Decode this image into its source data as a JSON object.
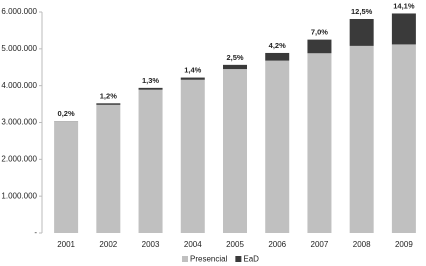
{
  "chart_data": {
    "type": "stacked-bar",
    "categories": [
      "2001",
      "2002",
      "2003",
      "2004",
      "2005",
      "2006",
      "2007",
      "2008",
      "2009"
    ],
    "series": [
      {
        "name": "Presencial",
        "color": "#c0c0c0",
        "values": [
          3030000,
          3480000,
          3890000,
          4160000,
          4450000,
          4680000,
          4880000,
          5080000,
          5120000
        ]
      },
      {
        "name": "EaD",
        "color": "#3a3a3a",
        "values": [
          5000,
          41000,
          50000,
          60000,
          115000,
          208000,
          370000,
          730000,
          840000
        ]
      }
    ],
    "annotations": [
      "0,2%",
      "1,2%",
      "1,3%",
      "1,4%",
      "2,5%",
      "4,2%",
      "7,0%",
      "12,5%",
      "14,1%"
    ],
    "ylim": [
      0,
      6000000
    ],
    "yticks": [
      {
        "value": 0,
        "label": "-"
      },
      {
        "value": 1000000,
        "label": "1.000.000"
      },
      {
        "value": 2000000,
        "label": "2.000.000"
      },
      {
        "value": 3000000,
        "label": "3.000.000"
      },
      {
        "value": 4000000,
        "label": "4.000.000"
      },
      {
        "value": 5000000,
        "label": "5.000.000"
      },
      {
        "value": 6000000,
        "label": "6.000.000"
      }
    ],
    "legend": "bottom"
  }
}
